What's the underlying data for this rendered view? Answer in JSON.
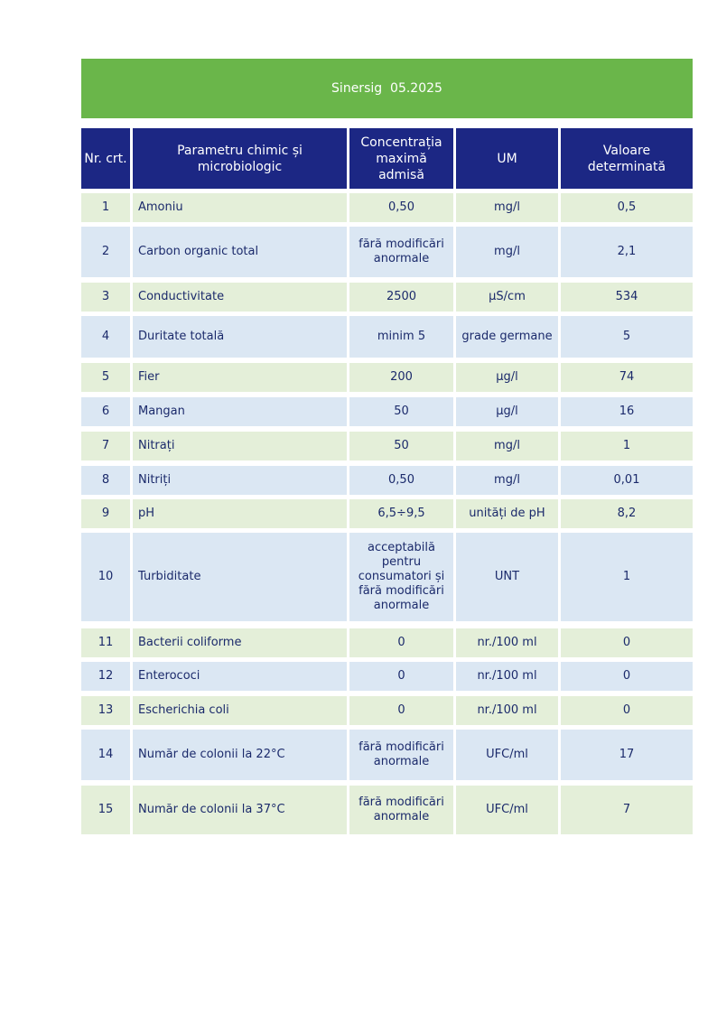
{
  "header": {
    "title": "Sinersig  05.2025"
  },
  "table": {
    "columns": [
      "Nr. crt.",
      "Parametru chimic și microbiologic",
      "Concentrația maximă admisă",
      "UM",
      "Valoare determinată"
    ],
    "rows": [
      [
        "1",
        "Amoniu",
        "0,50",
        "mg/l",
        "0,5"
      ],
      [
        "2",
        "Carbon organic total",
        "fără modificări anormale",
        "mg/l",
        "2,1"
      ],
      [
        "3",
        "Conductivitate",
        "2500",
        "µS/cm",
        "534"
      ],
      [
        "4",
        "Duritate totală",
        "minim 5",
        "grade germane",
        "5"
      ],
      [
        "5",
        "Fier",
        "200",
        "µg/l",
        "74"
      ],
      [
        "6",
        "Mangan",
        "50",
        "µg/l",
        "16"
      ],
      [
        "7",
        "Nitrați",
        "50",
        "mg/l",
        "1"
      ],
      [
        "8",
        "Nitriți",
        "0,50",
        "mg/l",
        "0,01"
      ],
      [
        "9",
        "pH",
        "6,5÷9,5",
        "unități de pH",
        "8,2"
      ],
      [
        "10",
        "Turbiditate",
        "acceptabilă pentru consumatori și fără modificări anormale",
        "UNT",
        "1"
      ],
      [
        "11",
        "Bacterii coliforme",
        "0",
        "nr./100 ml",
        "0"
      ],
      [
        "12",
        "Enterococi",
        "0",
        "nr./100 ml",
        "0"
      ],
      [
        "13",
        "Escherichia coli",
        "0",
        "nr./100 ml",
        "0"
      ],
      [
        "14",
        "Număr de colonii la 22°C",
        "fără modificări anormale",
        "UFC/ml",
        "17"
      ],
      [
        "15",
        "Număr de colonii la 37°C",
        "fără modificări anormale",
        "UFC/ml",
        "7"
      ]
    ]
  }
}
